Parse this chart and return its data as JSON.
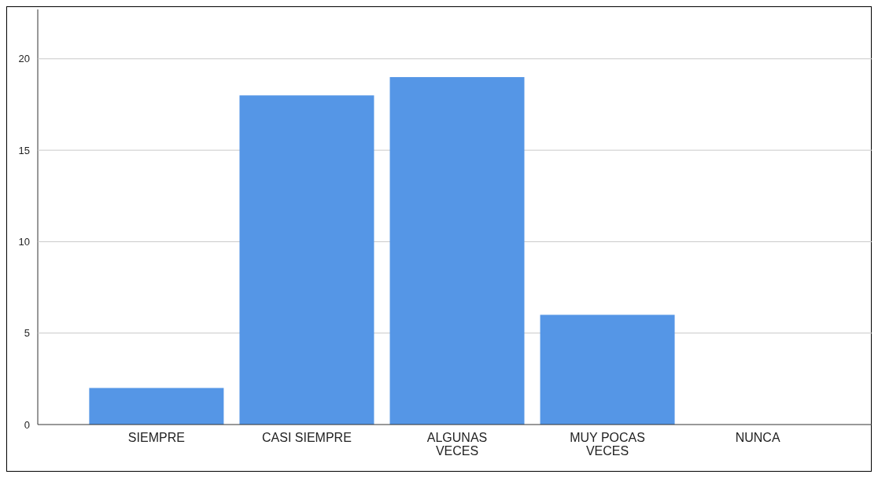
{
  "chart_data": {
    "type": "bar",
    "categories": [
      "SIEMPRE",
      "CASI SIEMPRE",
      "ALGUNAS VECES",
      "MUY POCAS VECES",
      "NUNCA"
    ],
    "values": [
      2,
      18,
      19,
      6,
      0
    ],
    "color": "#5596e6",
    "ylim": [
      0,
      22.7
    ],
    "yticks": [
      0,
      5,
      10,
      15,
      20
    ],
    "grid": "y"
  }
}
